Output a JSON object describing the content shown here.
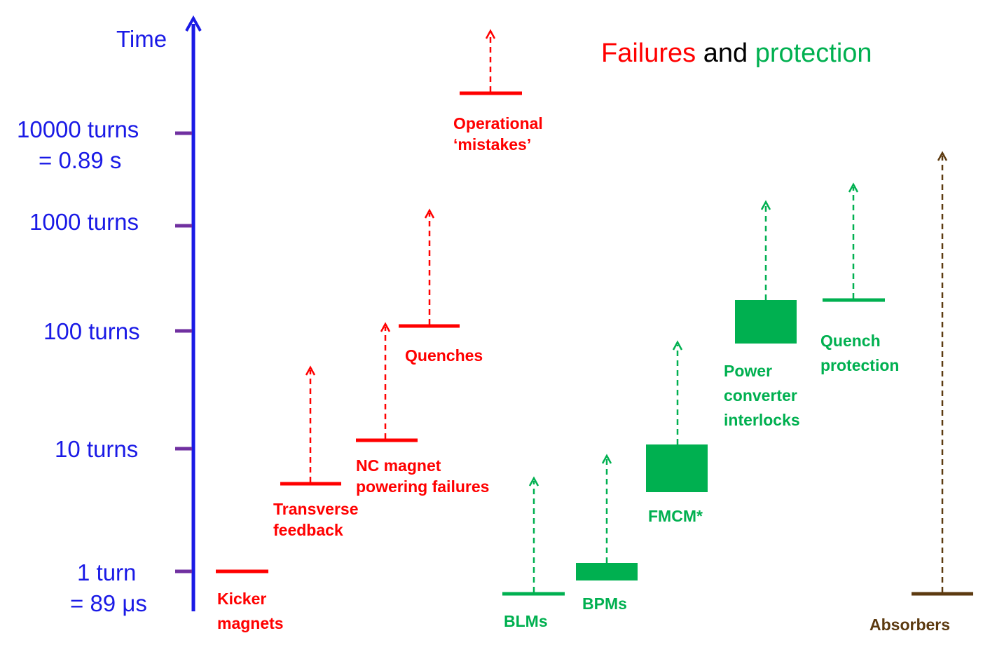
{
  "title": {
    "part1": "Failures",
    "part2": " and ",
    "part3": "protection"
  },
  "axis": {
    "title": "Time",
    "ticks": [
      {
        "lines": [
          "1 turn",
          "= 89 μs"
        ]
      },
      {
        "lines": [
          "10 turns"
        ]
      },
      {
        "lines": [
          "100 turns"
        ]
      },
      {
        "lines": [
          "1000 turns"
        ]
      },
      {
        "lines": [
          "10000 turns",
          "= 0.89 s"
        ]
      }
    ]
  },
  "items": [
    {
      "kind": "failure",
      "label": [
        "Kicker",
        "magnets"
      ]
    },
    {
      "kind": "failure",
      "label": [
        "Transverse",
        "feedback"
      ]
    },
    {
      "kind": "failure",
      "label": [
        "NC magnet",
        "powering failures"
      ]
    },
    {
      "kind": "failure",
      "label": [
        "Quenches"
      ]
    },
    {
      "kind": "failure",
      "label": [
        "Operational",
        "‘mistakes’"
      ]
    },
    {
      "kind": "protection",
      "label": [
        "BLMs"
      ]
    },
    {
      "kind": "protection",
      "label": [
        "BPMs"
      ]
    },
    {
      "kind": "protection",
      "label": [
        "FMCM*"
      ]
    },
    {
      "kind": "protection",
      "label": [
        "Power",
        "converter",
        "interlocks"
      ]
    },
    {
      "kind": "protection",
      "label": [
        "Quench",
        "protection"
      ]
    },
    {
      "kind": "passive",
      "label": [
        "Absorbers"
      ]
    }
  ],
  "colors": {
    "axis": "#1a1ae6",
    "tick": "#7030a0",
    "failure": "#ff0000",
    "protection": "#00b050",
    "passive": "#5c3a10",
    "title_mid": "#000000"
  }
}
